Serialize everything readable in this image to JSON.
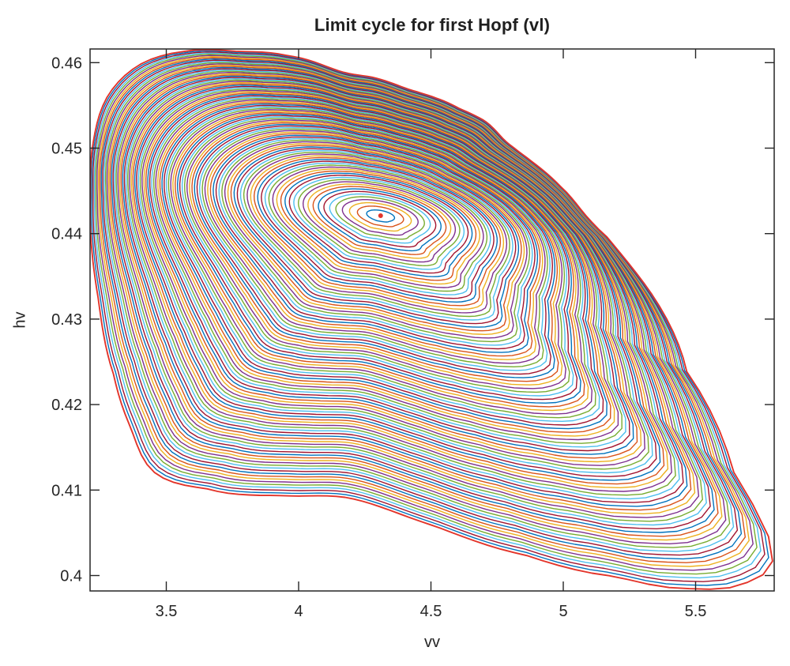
{
  "chart_data": {
    "type": "line",
    "title": "Limit cycle for first Hopf (vl)",
    "xlabel": "vv",
    "ylabel": "hv",
    "xlim": [
      3.212,
      5.797
    ],
    "ylim": [
      0.3982,
      0.4616
    ],
    "xticks": [
      3.5,
      4,
      4.5,
      5,
      5.5
    ],
    "xtick_labels": [
      "3.5",
      "4",
      "4.5",
      "5",
      "5.5"
    ],
    "yticks": [
      0.4,
      0.41,
      0.42,
      0.43,
      0.44,
      0.45,
      0.46
    ],
    "ytick_labels": [
      "0.4",
      "0.41",
      "0.42",
      "0.43",
      "0.44",
      "0.45",
      "0.46"
    ],
    "grid": false,
    "box": true,
    "legend": null,
    "axis_color": "#252525",
    "background": "#ffffff",
    "series_description": "Family of ~100 nested periodic orbits (limit cycles) grown from a Hopf bifurcation point; line colors cycle through the MATLAB default color order; the outermost cycle and the equilibrium marker are drawn in red.",
    "num_cycles": 100,
    "color_order": [
      "#0072BD",
      "#D95319",
      "#EDB120",
      "#7E2F8E",
      "#77AC30",
      "#4DBEEE",
      "#A2142F"
    ],
    "outer_cycle_color": "#E3342A",
    "hopf_point": {
      "vv": 4.31,
      "hv": 0.4421
    },
    "outer_cycle": {
      "vv": [
        3.774,
        3.961,
        3.566,
        3.396,
        3.277,
        3.223,
        3.213,
        3.241,
        3.3,
        3.364,
        3.454,
        3.648,
        3.976,
        4.215,
        4.513,
        4.857,
        5.2,
        5.499,
        5.702,
        5.791,
        5.646,
        5.467,
        5.169,
        4.99,
        4.811,
        4.707,
        4.603,
        4.424,
        4.29,
        4.156
      ],
      "hv": [
        0.4613,
        0.4608,
        0.4613,
        0.4597,
        0.456,
        0.4505,
        0.4436,
        0.4328,
        0.4236,
        0.4174,
        0.4121,
        0.4102,
        0.4093,
        0.4089,
        0.4058,
        0.4024,
        0.3999,
        0.3985,
        0.3993,
        0.4026,
        0.4119,
        0.4238,
        0.4395,
        0.4455,
        0.4501,
        0.4531,
        0.4547,
        0.4568,
        0.4582,
        0.459
      ]
    },
    "inner_ellipse": {
      "aspect": 2.8,
      "tilt_deg": 10
    },
    "render_hints": {
      "radial_exponent": 0.75,
      "morph_exponent": 0.7,
      "line_width": 1.4,
      "outer_line_width": 1.9,
      "tick_length": 12
    }
  }
}
